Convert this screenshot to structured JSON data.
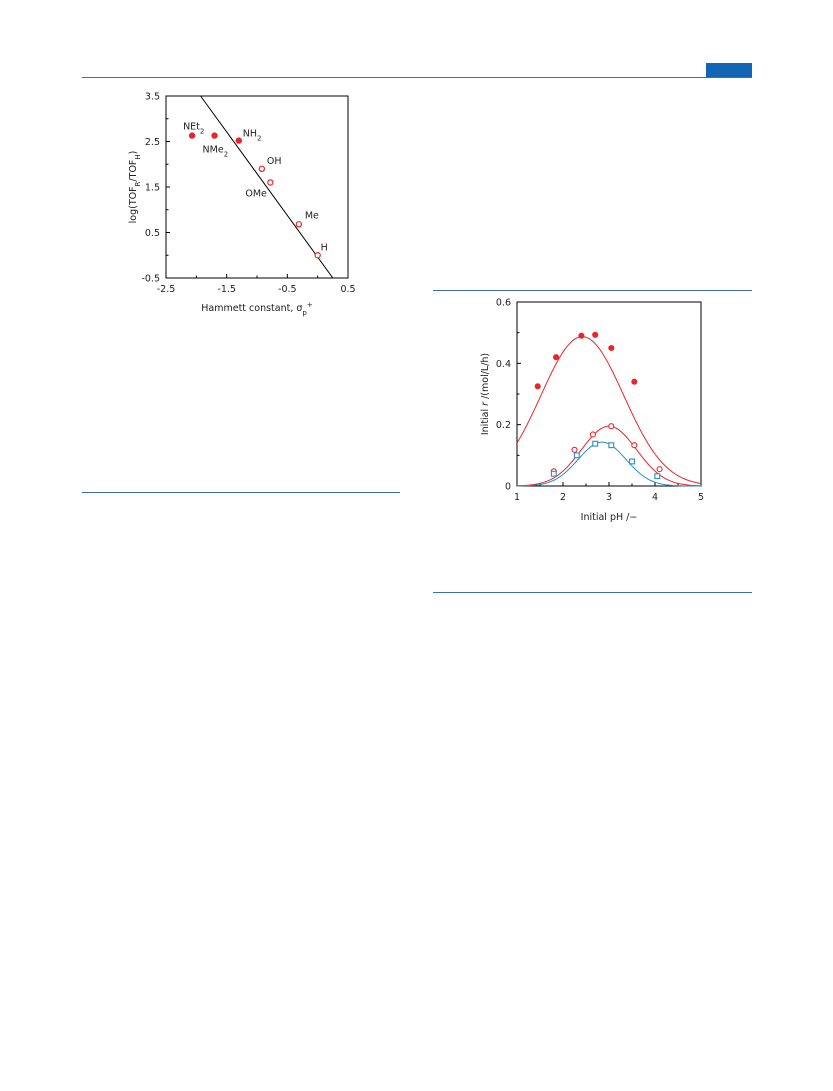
{
  "colors": {
    "accent": "#1565b5",
    "rule": "#3a6fb0",
    "red": "#e8262a",
    "blue": "#2a8fc8"
  },
  "chart_data": [
    {
      "type": "scatter",
      "xlabel": "Hammett constant, σp+",
      "ylabel": "log(TOFR/TOFH)",
      "xlim": [
        -2.5,
        0.5
      ],
      "ylim": [
        -0.5,
        3.5
      ],
      "xticks": [
        "-2.5",
        "-1.5",
        "-0.5",
        "0.5"
      ],
      "yticks": [
        "-0.5",
        "0.5",
        "1.5",
        "2.5",
        "3.5"
      ],
      "points": [
        {
          "label": "NEt2",
          "x": -2.07,
          "y": 2.63,
          "filled": true
        },
        {
          "label": "NMe2",
          "x": -1.7,
          "y": 2.63,
          "filled": true
        },
        {
          "label": "NH2",
          "x": -1.3,
          "y": 2.52,
          "filled": true
        },
        {
          "label": "OH",
          "x": -0.92,
          "y": 1.9,
          "filled": false
        },
        {
          "label": "OMe",
          "x": -0.78,
          "y": 1.6,
          "filled": false
        },
        {
          "label": "Me",
          "x": -0.31,
          "y": 0.68,
          "filled": false
        },
        {
          "label": "H",
          "x": 0.0,
          "y": 0.0,
          "filled": false
        }
      ],
      "fit_line": {
        "x": [
          -1.93,
          0.25
        ],
        "y": [
          3.5,
          -0.5
        ]
      }
    },
    {
      "type": "scatter",
      "xlabel": "Initial pH /−",
      "ylabel": "Initial r /(mol/L/h)",
      "xlim": [
        1,
        5
      ],
      "ylim": [
        0,
        0.6
      ],
      "xticks": [
        "1",
        "2",
        "3",
        "4",
        "5"
      ],
      "yticks": [
        "0",
        "0.2",
        "0.4",
        "0.6"
      ],
      "series": [
        {
          "marker": "filled-circle",
          "color": "#e8262a",
          "x": [
            1.45,
            1.85,
            2.4,
            2.7,
            3.05,
            3.55
          ],
          "y": [
            0.325,
            0.42,
            0.49,
            0.493,
            0.45,
            0.34
          ],
          "fit": {
            "peak": 0.487,
            "center": 2.42,
            "width": 0.9
          }
        },
        {
          "marker": "open-circle",
          "color": "#e8262a",
          "x": [
            1.8,
            2.25,
            2.65,
            3.05,
            3.55,
            4.1
          ],
          "y": [
            0.048,
            0.118,
            0.168,
            0.195,
            0.133,
            0.055
          ],
          "fit": {
            "peak": 0.195,
            "center": 3.0,
            "width": 0.6
          }
        },
        {
          "marker": "open-square",
          "color": "#2a8fc8",
          "x": [
            1.8,
            2.3,
            2.7,
            3.05,
            3.5,
            4.05
          ],
          "y": [
            0.04,
            0.1,
            0.138,
            0.133,
            0.08,
            0.032
          ],
          "fit": {
            "peak": 0.143,
            "center": 2.85,
            "width": 0.52
          }
        }
      ]
    }
  ]
}
